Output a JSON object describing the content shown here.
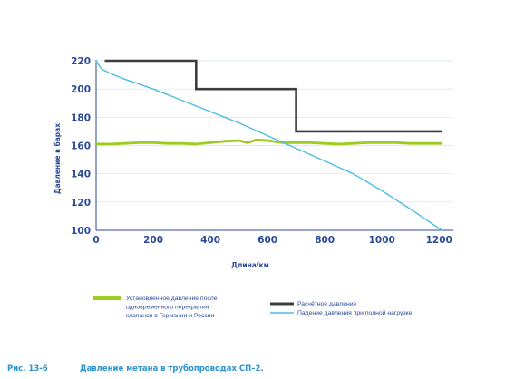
{
  "chart_data": {
    "type": "line",
    "xlabel": "Длина/км",
    "ylabel": "Давление в барах",
    "xlim": [
      0,
      1250
    ],
    "ylim": [
      100,
      220
    ],
    "x_ticks": [
      "0",
      "200",
      "400",
      "600",
      "800",
      "1000",
      "1200"
    ],
    "y_ticks": [
      "100",
      "120",
      "140",
      "160",
      "180",
      "200",
      "220"
    ],
    "grid": "horizontal",
    "series": [
      {
        "name": "Установленное давление после одновременного перекрытия клапанов в Германии и России",
        "color": "#9ccc1d",
        "x": [
          0,
          50,
          100,
          150,
          200,
          250,
          300,
          350,
          400,
          450,
          500,
          530,
          560,
          600,
          650,
          700,
          750,
          800,
          850,
          900,
          950,
          1000,
          1050,
          1100,
          1150,
          1210
        ],
        "y": [
          161,
          161,
          161.5,
          162,
          162,
          161.5,
          161.5,
          161,
          162,
          163,
          163.5,
          162,
          164,
          163.5,
          162,
          162,
          162,
          161.5,
          161,
          161.5,
          162,
          162,
          162,
          161.5,
          161.5,
          161.5
        ]
      },
      {
        "name": "Расчётное давление",
        "color": "#3d3d3d",
        "x": [
          30,
          350,
          350,
          700,
          700,
          1210
        ],
        "y": [
          220,
          220,
          200,
          200,
          170,
          170
        ]
      },
      {
        "name": "Падение давления при полной нагрузке",
        "color": "#4bbde3",
        "x": [
          0,
          5,
          20,
          50,
          100,
          200,
          300,
          400,
          500,
          600,
          700,
          800,
          900,
          1000,
          1100,
          1210
        ],
        "y": [
          220,
          218,
          214,
          211,
          207,
          200,
          192,
          184,
          176,
          167,
          158,
          149,
          140,
          128,
          115,
          100
        ]
      }
    ],
    "legend_placement": "bottom"
  },
  "caption": {
    "figure": "Рис. 13-6",
    "title": "Давление метана в трубопроводах СП–2."
  }
}
